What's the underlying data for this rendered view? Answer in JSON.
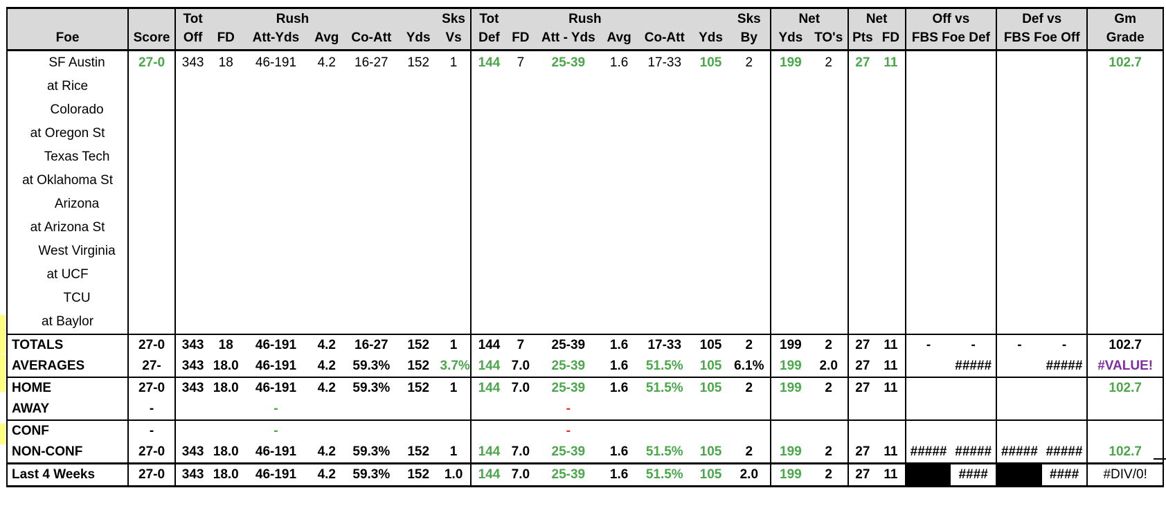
{
  "header": {
    "row1": {
      "tot_off": "Tot",
      "rush": "Rush",
      "sks_vs": "Sks",
      "tot_def": "Tot",
      "drush": "Rush",
      "sks_by": "Sks",
      "net_yds": "Net",
      "net_pts": "Net",
      "off_vs": "Off vs",
      "def_vs": "Def vs",
      "gm_grade": "Gm"
    },
    "row2": {
      "foe": "Foe",
      "score": "Score",
      "off": "Off",
      "fd": "FD",
      "att_yds": "Att-Yds",
      "avg": "Avg",
      "co_att": "Co-Att",
      "yds": "Yds",
      "vs": "Vs",
      "def": "Def",
      "dfd": "FD",
      "datt_yds": "Att - Yds",
      "davg": "Avg",
      "dco_att": "Co-Att",
      "dyds": "Yds",
      "by": "By",
      "net_yds": "Yds",
      "tos": "TO's",
      "pts": "Pts",
      "nfd": "FD",
      "fbs_foe_def": "FBS Foe Def",
      "fbs_foe_off": "FBS Foe Off",
      "grade": "Grade"
    }
  },
  "games": [
    {
      "foe": "SF Austin",
      "home": true,
      "score": "27-0",
      "tot_off": "343",
      "fd": "18",
      "att_yds": "46-191",
      "avg": "4.2",
      "co_att": "16-27",
      "yds": "152",
      "sks_vs": "1",
      "tot_def": "144",
      "dfd": "7",
      "datt_yds": "25-39",
      "davg": "1.6",
      "dco_att": "17-33",
      "dyds": "105",
      "sks_by": "2",
      "net_yds": "199",
      "tos": "2",
      "pts": "27",
      "nfd": "11",
      "grade": "102.7"
    },
    {
      "foe": "at Rice",
      "home": false
    },
    {
      "foe": "Colorado",
      "home": true
    },
    {
      "foe": "at Oregon St",
      "home": false
    },
    {
      "foe": "Texas Tech",
      "home": true
    },
    {
      "foe": "at Oklahoma St",
      "home": false
    },
    {
      "foe": "Arizona",
      "home": true
    },
    {
      "foe": "at Arizona St",
      "home": false
    },
    {
      "foe": "West Virginia",
      "home": true
    },
    {
      "foe": "at UCF",
      "home": false
    },
    {
      "foe": "TCU",
      "home": true
    },
    {
      "foe": "at Baylor",
      "home": false
    }
  ],
  "summary": {
    "totals": {
      "label": "TOTALS",
      "score": "27-0",
      "tot_off": "343",
      "fd": "18",
      "att_yds": "46-191",
      "avg": "4.2",
      "co_att": "16-27",
      "yds": "152",
      "sks_vs": "1",
      "tot_def": "144",
      "dfd": "7",
      "datt_yds": "25-39",
      "davg": "1.6",
      "dco_att": "17-33",
      "dyds": "105",
      "sks_by": "2",
      "net_yds": "199",
      "tos": "2",
      "pts": "27",
      "nfd": "11",
      "off_a": "-",
      "off_b": "-",
      "def_a": "-",
      "def_b": "-",
      "grade": "102.7"
    },
    "averages": {
      "label": "AVERAGES",
      "score": "27-",
      "tot_off": "343",
      "fd": "18.0",
      "att_yds": "46-191",
      "avg": "4.2",
      "co_att": "59.3%",
      "yds": "152",
      "sks_vs": "3.7%",
      "tot_def": "144",
      "dfd": "7.0",
      "datt_yds": "25-39",
      "davg": "1.6",
      "dco_att": "51.5%",
      "dyds": "105",
      "sks_by": "6.1%",
      "net_yds": "199",
      "tos": "2.0",
      "pts": "27",
      "nfd": "11",
      "off_b": "#####",
      "def_b": "#####",
      "grade": "#VALUE!"
    },
    "home": {
      "label": "HOME",
      "score": "27-0",
      "tot_off": "343",
      "fd": "18.0",
      "att_yds": "46-191",
      "avg": "4.2",
      "co_att": "59.3%",
      "yds": "152",
      "sks_vs": "1",
      "tot_def": "144",
      "dfd": "7.0",
      "datt_yds": "25-39",
      "davg": "1.6",
      "dco_att": "51.5%",
      "dyds": "105",
      "sks_by": "2",
      "net_yds": "199",
      "tos": "2",
      "pts": "27",
      "nfd": "11",
      "grade": "102.7"
    },
    "away": {
      "label": "AWAY",
      "score": "-",
      "att_yds": "-",
      "datt_yds": "-"
    },
    "conf": {
      "label": "CONF",
      "score": "-",
      "att_yds": "-",
      "datt_yds": "-"
    },
    "nonconf": {
      "label": "NON-CONF",
      "score": "27-0",
      "tot_off": "343",
      "fd": "18.0",
      "att_yds": "46-191",
      "avg": "4.2",
      "co_att": "59.3%",
      "yds": "152",
      "sks_vs": "1",
      "tot_def": "144",
      "dfd": "7.0",
      "datt_yds": "25-39",
      "davg": "1.6",
      "dco_att": "51.5%",
      "dyds": "105",
      "sks_by": "2",
      "net_yds": "199",
      "tos": "2",
      "pts": "27",
      "nfd": "11",
      "off_a": "#####",
      "off_b": "#####",
      "def_a": "#####",
      "def_b": "#####",
      "grade": "102.7"
    },
    "last4": {
      "label": "Last 4 Weeks",
      "score": "27-0",
      "tot_off": "343",
      "fd": "18.0",
      "att_yds": "46-191",
      "avg": "4.2",
      "co_att": "59.3%",
      "yds": "152",
      "sks_vs": "1.0",
      "tot_def": "144",
      "dfd": "7.0",
      "datt_yds": "25-39",
      "davg": "1.6",
      "dco_att": "51.5%",
      "dyds": "105",
      "sks_by": "2.0",
      "net_yds": "199",
      "tos": "2",
      "pts": "27",
      "nfd": "11",
      "off_b": "####",
      "def_b": "####",
      "grade": "#DIV/0!"
    }
  },
  "colors": {
    "green": "#4ca64c",
    "red": "#e03030",
    "purple": "#7b2fa0",
    "header_bg": "#d9d9d9"
  }
}
